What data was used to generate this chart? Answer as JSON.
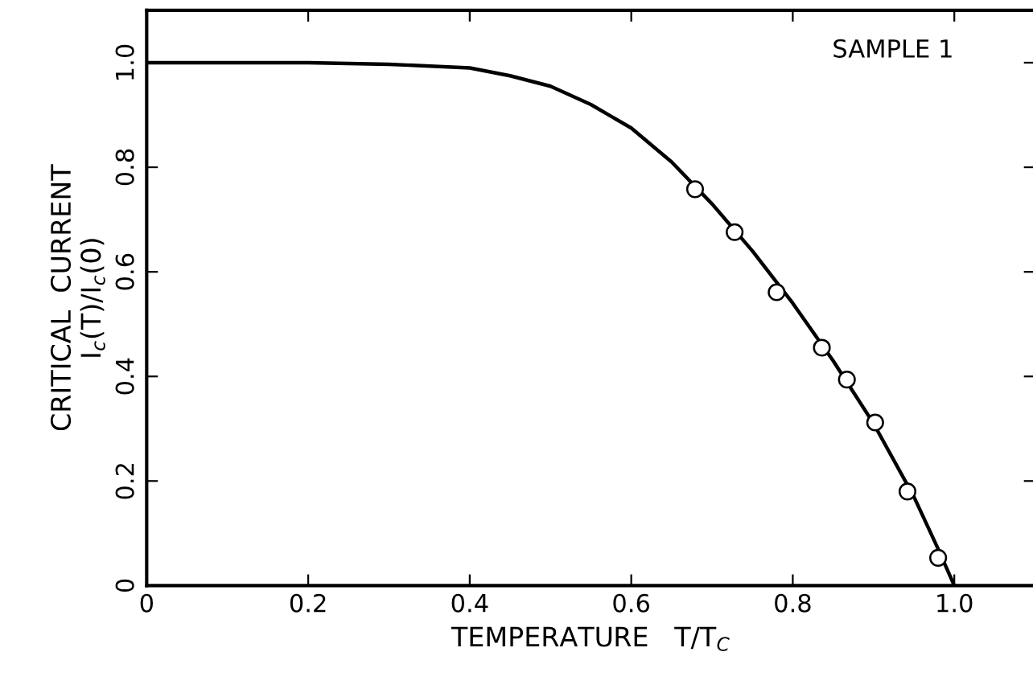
{
  "chart_data": {
    "type": "line",
    "xlabel": "TEMPERATURE   T/T$_{C}$",
    "ylabel": "CRITICAL  CURRENT\nI$_{c}$(T)/I$_{c}$(0)",
    "annotations": [
      "SAMPLE 1"
    ],
    "xlim": [
      0,
      1.1
    ],
    "ylim": [
      0,
      1.1
    ],
    "xticks": [
      0,
      0.2,
      0.4,
      0.6,
      0.8,
      {
        "value": 1,
        "label": "1.0"
      }
    ],
    "yticks": [
      0,
      0.2,
      0.4,
      0.6,
      0.8,
      {
        "value": 1,
        "label": "1.0"
      }
    ],
    "grid": false,
    "series": [
      {
        "color": "#000000",
        "line_style": "solid",
        "marker": "none",
        "x": [
          0,
          0.1,
          0.2,
          0.3,
          0.4,
          0.45,
          0.5,
          0.55,
          0.6,
          0.65,
          0.7,
          0.75,
          0.8,
          0.85,
          0.9,
          0.95,
          0.98,
          1.0
        ],
        "values": [
          1.0,
          1.0,
          1.0,
          0.997,
          0.99,
          0.975,
          0.955,
          0.92,
          0.875,
          0.81,
          0.73,
          0.64,
          0.54,
          0.43,
          0.31,
          0.17,
          0.07,
          0.0
        ]
      },
      {
        "type": "scatter",
        "color": "#000000",
        "marker": "circle",
        "x": [
          0.679,
          0.728,
          0.78,
          0.836,
          0.867,
          0.902,
          0.942,
          0.98
        ],
        "values": [
          0.758,
          0.676,
          0.561,
          0.455,
          0.394,
          0.312,
          0.18,
          0.053
        ]
      }
    ]
  }
}
